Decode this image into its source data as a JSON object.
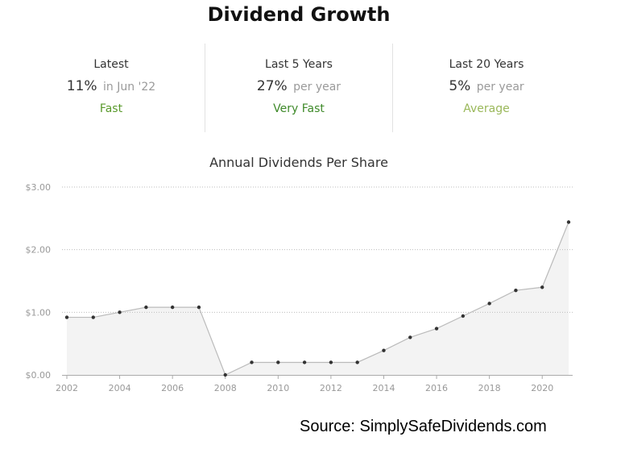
{
  "title": "Dividend Growth",
  "stats": [
    {
      "label": "Latest",
      "value": "11%",
      "suffix": "in Jun '22",
      "rating": "Fast",
      "rating_color": "#5a9a2c"
    },
    {
      "label": "Last 5 Years",
      "value": "27%",
      "suffix": "per year",
      "rating": "Very Fast",
      "rating_color": "#3f8a2a"
    },
    {
      "label": "Last 20 Years",
      "value": "5%",
      "suffix": "per year",
      "rating": "Average",
      "rating_color": "#9ab85a"
    }
  ],
  "source": "Source: SimplySafeDividends.com",
  "chart_data": {
    "type": "area",
    "title": "Annual Dividends Per Share",
    "xlabel": "",
    "ylabel": "",
    "x": [
      2002,
      2003,
      2004,
      2005,
      2006,
      2007,
      2008,
      2009,
      2010,
      2011,
      2012,
      2013,
      2014,
      2015,
      2016,
      2017,
      2018,
      2019,
      2020,
      2021
    ],
    "values": [
      0.92,
      0.92,
      1.0,
      1.08,
      1.08,
      1.08,
      0.0,
      0.2,
      0.2,
      0.2,
      0.2,
      0.2,
      0.39,
      0.6,
      0.74,
      0.94,
      1.14,
      1.35,
      1.4,
      2.44
    ],
    "xlim": [
      2002,
      2021
    ],
    "ylim": [
      0,
      3
    ],
    "x_ticks": [
      2002,
      2004,
      2006,
      2008,
      2010,
      2012,
      2014,
      2016,
      2018,
      2020
    ],
    "x_tick_labels": [
      "2002",
      "2004",
      "2006",
      "2008",
      "2010",
      "2012",
      "2014",
      "2016",
      "2018",
      "2020"
    ],
    "y_ticks": [
      0,
      1,
      2,
      3
    ],
    "y_tick_labels": [
      "$0.00",
      "$1.00",
      "$2.00",
      "$3.00"
    ],
    "grid": true,
    "colors": {
      "line": "#bbbbbb",
      "fill": "#f3f3f3",
      "marker": "#333333",
      "grid": "#bdbdbd"
    }
  }
}
